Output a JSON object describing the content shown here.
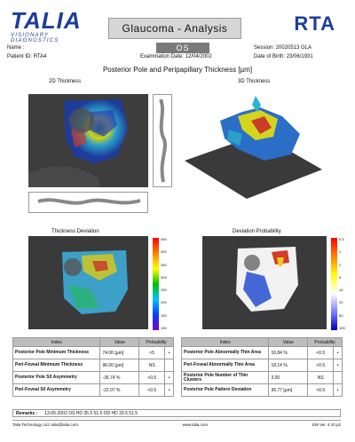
{
  "header": {
    "logo_main": "TALIA",
    "logo_sub": "VISIONARY DIAGNOSTICS",
    "title": "Glaucoma - Analysis",
    "product": "RTA",
    "name_label": "Name :",
    "patient_id_label": "Patient ID:",
    "patient_id": "RTA4",
    "eye": "OS",
    "exam_date_label": "Examination Date:",
    "exam_date": "12/04/2002",
    "session_label": "Session:",
    "session": "20020513 GLA",
    "dob_label": "Date of Birth:",
    "dob": "23/06/1931"
  },
  "main_title": "Posterior Pole and Peripapillary Thickness [µm]",
  "panels": {
    "thickness_2d": "2D Thickness",
    "thickness_3d": "3D Thickness",
    "deviation": "Thickness Deviation",
    "probability": "Deviation Probability"
  },
  "colors": {
    "brand": "#1c3d9c",
    "header_gray": "#d6d6d6",
    "eye_box": "#7a7a7a"
  },
  "colorbars": {
    "thickness_ticks": [
      "450",
      "400",
      "350",
      "300",
      "250",
      "200",
      "150",
      "100"
    ],
    "probability_ticks": [
      "0.5",
      "1",
      "2",
      "5",
      "10",
      "20",
      "50",
      "100"
    ]
  },
  "table_left": {
    "headers": [
      "Index",
      "Value",
      "Probability"
    ],
    "rows": [
      {
        "label": "Posterior Pole Minimum Thickness",
        "value": "74.00 [µm]",
        "prob": "<5",
        "mark": "•"
      },
      {
        "label": "Peri-Foveal Minimum Thickness",
        "value": "96.00 [µm]",
        "prob": "NS",
        "mark": ""
      },
      {
        "label": "Posterior Pole S/I Asymmetry",
        "value": "-36.74 %",
        "prob": "<0.5",
        "mark": "•"
      },
      {
        "label": "Peri-Foveal S/I Asymmetry",
        "value": "-22.07 %",
        "prob": "<0.5",
        "mark": "•"
      }
    ]
  },
  "table_right": {
    "headers": [
      "Index",
      "Value",
      "Probability"
    ],
    "rows": [
      {
        "label": "Posterior Pole Abnormally Thin Area",
        "value": "16.84 %",
        "prob": "<0.5",
        "mark": "•"
      },
      {
        "label": "Peri-Foveal Abnormally Thin Area",
        "value": "18.14 %",
        "prob": "<0.5",
        "mark": "•"
      },
      {
        "label": "Posterior Pole Number of Thin Clusters",
        "value": "3.00",
        "prob": "NS",
        "mark": ""
      },
      {
        "label": "Posterior Pole Pattern Deviation",
        "value": "36.77 [µm]",
        "prob": "<0.5",
        "mark": "•"
      }
    ]
  },
  "remarks": {
    "label": "Remarks :",
    "text": "13-05-2002 OS HD 35.5 51.5 OD HD 33.5 51.5"
  },
  "footer": {
    "company": "Talia Technology Ltd. talia@talia.com",
    "website": "www.talia.com",
    "version": "SW Ver. 4.10 p2"
  }
}
